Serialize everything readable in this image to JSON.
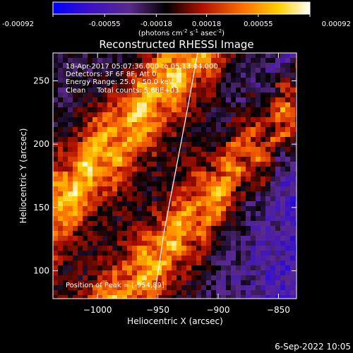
{
  "chart_data": {
    "type": "heatmap",
    "title": "Reconstructed RHESSI Image",
    "xlabel": "Heliocentric X (arcsec)",
    "ylabel": "Heliocentric Y (arcsec)",
    "xlim": [
      -1037,
      -835
    ],
    "ylim": [
      78,
      272
    ],
    "x_ticks": [
      -1000,
      -950,
      -900,
      -850
    ],
    "x_tick_labels": [
      "−1000",
      "−950",
      "−900",
      "−850"
    ],
    "y_ticks": [
      100,
      150,
      200,
      250
    ],
    "y_tick_labels": [
      "100",
      "150",
      "200",
      "250"
    ],
    "colorbar": {
      "min": -0.00092,
      "max": 0.00092,
      "ticks": [
        -0.00092,
        -0.00055,
        -0.00018,
        0.00018,
        0.00055,
        0.00092
      ],
      "tick_labels": [
        "-0.00092",
        "-0.00055",
        "-0.00018",
        "0.00018",
        "0.00055",
        "0.00092"
      ],
      "unit_parts": [
        "(photons cm",
        "-2",
        " s",
        "-1",
        " asec",
        "-2",
        ")"
      ],
      "colors": [
        "#0000ff",
        "#3a10c8",
        "#5a2a8a",
        "#000000",
        "#b01000",
        "#ff7000",
        "#ffd000",
        "#ffffff"
      ]
    },
    "annotations": [
      "18-Apr-2017 05:07:36.000 to 05:13:04.000",
      "Detectors: 3F 6F 8F, Att 0",
      "Energy Range: 25.0 - 50.0 keV",
      "Clean     Total counts: 5.68E+03"
    ],
    "peak_label": "Position of Peak = [-954,89]",
    "limb_curve": {
      "x": [
        -917,
        -925,
        -935,
        -945,
        -952
      ],
      "y": [
        272,
        230,
        180,
        130,
        85
      ]
    },
    "grid": false
  },
  "footer": {
    "date": "6-Sep-2022 10:05"
  }
}
